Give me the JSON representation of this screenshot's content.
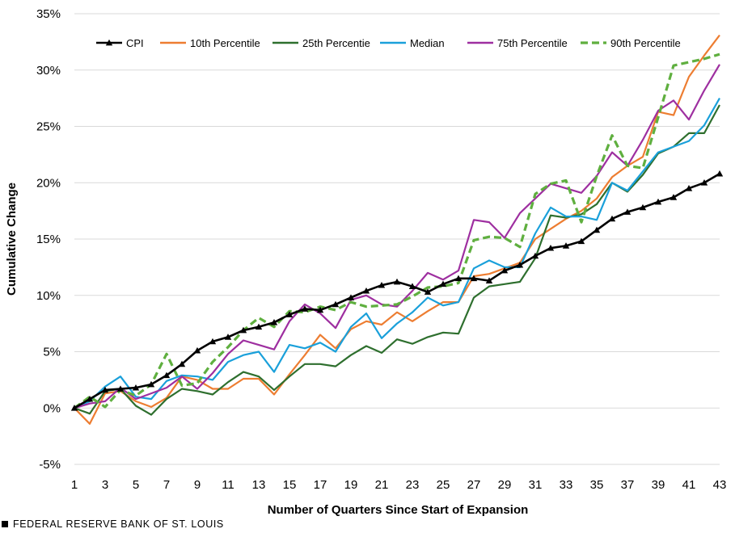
{
  "chart_data": {
    "type": "line",
    "title": "",
    "xlabel": "Number of Quarters Since Start of Expansion",
    "ylabel": "Cumulative Change",
    "xlim": [
      1,
      43
    ],
    "ylim": [
      -5,
      35
    ],
    "x_ticks": [
      1,
      3,
      5,
      7,
      9,
      11,
      13,
      15,
      17,
      19,
      21,
      23,
      25,
      27,
      29,
      31,
      33,
      35,
      37,
      39,
      41,
      43
    ],
    "y_ticks": [
      -5,
      0,
      5,
      10,
      15,
      20,
      25,
      30,
      35
    ],
    "y_tick_labels": [
      "-5%",
      "0%",
      "5%",
      "10%",
      "15%",
      "20%",
      "25%",
      "30%",
      "35%"
    ],
    "grid": "horizontal",
    "legend_position": "top",
    "x": [
      1,
      2,
      3,
      4,
      5,
      6,
      7,
      8,
      9,
      10,
      11,
      12,
      13,
      14,
      15,
      16,
      17,
      18,
      19,
      20,
      21,
      22,
      23,
      24,
      25,
      26,
      27,
      28,
      29,
      30,
      31,
      32,
      33,
      34,
      35,
      36,
      37,
      38,
      39,
      40,
      41,
      42,
      43
    ],
    "series": [
      {
        "name": "CPI",
        "color": "#000000",
        "style": "solid-triangle",
        "values": [
          0.0,
          0.8,
          1.6,
          1.7,
          1.8,
          2.1,
          2.9,
          3.9,
          5.1,
          5.9,
          6.3,
          6.9,
          7.2,
          7.6,
          8.3,
          8.8,
          8.7,
          9.2,
          9.8,
          10.4,
          10.9,
          11.2,
          10.8,
          10.3,
          11.0,
          11.5,
          11.5,
          11.3,
          12.2,
          12.7,
          13.5,
          14.2,
          14.4,
          14.8,
          15.8,
          16.8,
          17.4,
          17.8,
          18.3,
          18.7,
          19.5,
          20.0,
          20.8
        ]
      },
      {
        "name": "10th Percentile",
        "color": "#ED7D31",
        "style": "solid",
        "values": [
          0.0,
          -1.4,
          1.3,
          1.5,
          0.6,
          0.1,
          0.9,
          2.8,
          2.5,
          1.7,
          1.7,
          2.6,
          2.6,
          1.2,
          3.0,
          4.7,
          6.5,
          5.3,
          7.0,
          7.7,
          7.4,
          8.5,
          7.7,
          8.6,
          9.4,
          9.4,
          11.7,
          11.9,
          12.4,
          12.9,
          15.0,
          15.9,
          16.8,
          17.5,
          18.6,
          20.5,
          21.5,
          22.3,
          26.3,
          26.0,
          29.4,
          31.3,
          33.1
        ]
      },
      {
        "name": "25th Percentie",
        "color": "#2E6F2E",
        "style": "solid",
        "values": [
          0.0,
          -0.5,
          1.5,
          1.7,
          0.2,
          -0.6,
          0.8,
          1.7,
          1.5,
          1.2,
          2.3,
          3.2,
          2.8,
          1.6,
          2.8,
          3.9,
          3.9,
          3.7,
          4.7,
          5.5,
          4.9,
          6.1,
          5.7,
          6.3,
          6.7,
          6.6,
          9.8,
          10.8,
          11.0,
          11.2,
          13.3,
          17.1,
          16.9,
          17.2,
          18.1,
          20.0,
          19.2,
          20.7,
          22.6,
          23.2,
          24.4,
          24.4,
          26.9
        ]
      },
      {
        "name": "Median",
        "color": "#1AA0DA",
        "style": "solid",
        "values": [
          0.0,
          0.6,
          1.9,
          2.8,
          1.0,
          0.8,
          2.4,
          2.9,
          2.8,
          2.5,
          4.1,
          4.7,
          5.0,
          3.2,
          5.6,
          5.3,
          5.8,
          5.0,
          7.2,
          8.4,
          6.2,
          7.5,
          8.5,
          9.8,
          9.1,
          9.4,
          12.4,
          13.1,
          12.5,
          12.5,
          15.5,
          17.8,
          17.0,
          17.0,
          16.7,
          20.0,
          19.3,
          21.0,
          22.7,
          23.2,
          23.7,
          25.1,
          27.5
        ]
      },
      {
        "name": "75th Percentile",
        "color": "#9E2FA0",
        "style": "solid",
        "values": [
          0.0,
          0.4,
          0.6,
          1.8,
          0.8,
          1.3,
          1.8,
          2.8,
          1.7,
          3.1,
          4.8,
          6.0,
          5.6,
          5.2,
          7.7,
          9.2,
          8.4,
          7.1,
          9.6,
          10.0,
          9.2,
          9.0,
          10.4,
          12.0,
          11.4,
          12.2,
          16.7,
          16.5,
          15.1,
          17.3,
          18.6,
          19.9,
          19.5,
          19.1,
          20.6,
          22.7,
          21.5,
          23.8,
          26.4,
          27.3,
          25.6,
          28.2,
          30.5
        ]
      },
      {
        "name": "90th Percentile",
        "color": "#5FAF3F",
        "style": "dashed",
        "values": [
          0.0,
          1.0,
          0.1,
          1.6,
          1.1,
          2.1,
          4.8,
          2.0,
          2.2,
          4.1,
          5.4,
          6.9,
          8.0,
          7.2,
          8.6,
          8.5,
          9.0,
          8.7,
          9.4,
          9.0,
          9.1,
          9.2,
          9.9,
          10.7,
          10.8,
          11.1,
          14.9,
          15.2,
          15.1,
          14.3,
          19.0,
          19.9,
          20.2,
          16.5,
          20.6,
          24.2,
          21.5,
          21.3,
          25.8,
          30.4,
          30.7,
          31.0,
          31.4
        ]
      }
    ]
  },
  "footer": {
    "source": "FEDERAL RESERVE BANK OF ST. LOUIS"
  }
}
